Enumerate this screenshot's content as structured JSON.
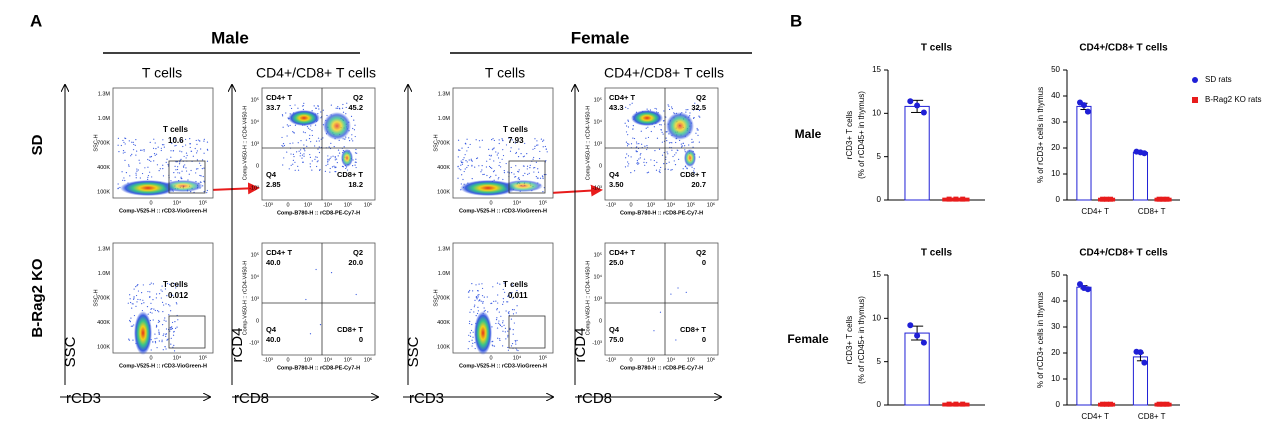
{
  "panel_a": {
    "label": "A",
    "groups": [
      "Male",
      "Female"
    ],
    "columns": [
      "T cells",
      "CD4+/CD8+ T cells",
      "T cells",
      "CD4+/CD8+ T cells"
    ],
    "rows": [
      "SD",
      "B-Rag2 KO"
    ],
    "axis_labels": {
      "ssc": "SSC",
      "cd3": "rCD3",
      "cd4": "rCD4",
      "cd8": "rCD8"
    },
    "axis_titles": {
      "ssc": "SSC-H",
      "cd3": "Comp-V525-H :: rCD3-VioGreen-H",
      "cd4": "Comp-V450-H :: rCD4-V450-H",
      "cd8": "Comp-B780-H :: rCD8-PE-Cy7-H"
    },
    "ssc_ticks": [
      "1.3M",
      "1.0M",
      "700K",
      "400K",
      "100K"
    ],
    "cd3_ticks": [
      "0",
      "10⁴",
      "10⁵"
    ],
    "cd4_ticks": [
      "10⁵",
      "10⁴",
      "10³",
      "0",
      "-10³"
    ],
    "cd8_ticks": [
      "-10³",
      "0",
      "10³",
      "10⁴",
      "10⁵",
      "10⁶"
    ],
    "tcell_plots": [
      {
        "gate": "T cells",
        "value": "10.6"
      },
      {
        "gate": "T cells",
        "value": "0.012"
      },
      {
        "gate": "T cells",
        "value": "7.93"
      },
      {
        "gate": "T cells",
        "value": "0.011"
      }
    ],
    "quadrant_plots": [
      {
        "q1": "CD4+ T",
        "v1": "33.7",
        "q2": "Q2",
        "v2": "45.2",
        "q3": "Q4",
        "v3": "2.85",
        "q4": "CD8+ T",
        "v4": "18.2"
      },
      {
        "q1": "CD4+ T",
        "v1": "40.0",
        "q2": "Q2",
        "v2": "20.0",
        "q3": "Q4",
        "v3": "40.0",
        "q4": "CD8+ T",
        "v4": "0"
      },
      {
        "q1": "CD4+ T",
        "v1": "43.3",
        "q2": "Q2",
        "v2": "32.5",
        "q3": "Q4",
        "v3": "3.50",
        "q4": "CD8+ T",
        "v4": "20.7"
      },
      {
        "q1": "CD4+ T",
        "v1": "25.0",
        "q2": "Q2",
        "v2": "0",
        "q3": "Q4",
        "v3": "75.0",
        "q4": "CD8+ T",
        "v4": "0"
      }
    ]
  },
  "panel_b": {
    "label": "B",
    "rows": [
      "Male",
      "Female"
    ]
  },
  "chart_data": [
    {
      "type": "bar",
      "title": "T cells",
      "ylabel": [
        "rCD3+ T cells",
        "(% of rCD45+ in thymus)"
      ],
      "ylim": [
        0,
        15
      ],
      "yticks": [
        0,
        5,
        10,
        15
      ],
      "series": [
        {
          "color": "#1f1fd6",
          "values": [
            10.8
          ],
          "errors": [
            0.7
          ],
          "points": [
            [
              11.4,
              10.9,
              10.1
            ]
          ]
        },
        {
          "color": "#e81c1c",
          "values": [
            0.1
          ],
          "points": [
            [
              0.1,
              0.1,
              0.1
            ]
          ]
        }
      ]
    },
    {
      "type": "bar",
      "title": "CD4+/CD8+ T cells",
      "ylabel": [
        "% of rCD3+ cells in thymus"
      ],
      "categories": [
        "CD4+ T",
        "CD8+ T"
      ],
      "ylim": [
        0,
        50
      ],
      "yticks": [
        0,
        10,
        20,
        30,
        40,
        50
      ],
      "legend": "upper right",
      "series": [
        {
          "name": "SD rats",
          "color": "#1f1fd6",
          "values": [
            36,
            18.3
          ],
          "errors": [
            1.2,
            0.3
          ],
          "points": [
            [
              37.5,
              36.5,
              34
            ],
            [
              18.6,
              18.3,
              18
            ]
          ]
        },
        {
          "name": "B-Rag2 KO rats",
          "color": "#e81c1c",
          "values": [
            0.3,
            0.3
          ],
          "points": [
            [
              0.3,
              0.3,
              0.3
            ],
            [
              0.3,
              0.3,
              0.3
            ]
          ]
        }
      ]
    },
    {
      "type": "bar",
      "title": "T cells",
      "ylabel": [
        "rCD3+ T cells",
        "(% of rCD45+ in thymus)"
      ],
      "ylim": [
        0,
        15
      ],
      "yticks": [
        0,
        5,
        10,
        15
      ],
      "series": [
        {
          "color": "#1f1fd6",
          "values": [
            8.3
          ],
          "errors": [
            0.8
          ],
          "points": [
            [
              9.2,
              8.0,
              7.2
            ]
          ]
        },
        {
          "color": "#e81c1c",
          "values": [
            0.1
          ],
          "points": [
            [
              0.1,
              0.1,
              0.1
            ]
          ]
        }
      ]
    },
    {
      "type": "bar",
      "title": "CD4+/CD8+ T cells",
      "ylabel": [
        "% of rCD3+ cells in thymus"
      ],
      "categories": [
        "CD4+ T",
        "CD8+ T"
      ],
      "ylim": [
        0,
        50
      ],
      "yticks": [
        0,
        10,
        20,
        30,
        40,
        50
      ],
      "series": [
        {
          "color": "#1f1fd6",
          "values": [
            45.3,
            18.5
          ],
          "errors": [
            0.6,
            1.5
          ],
          "points": [
            [
              46.5,
              45,
              44.5
            ],
            [
              20.5,
              20.3,
              16.3
            ]
          ]
        },
        {
          "color": "#e81c1c",
          "values": [
            0.3,
            0.3
          ],
          "points": [
            [
              0.3,
              0.3,
              0.3
            ],
            [
              0.3,
              0.3,
              0.3
            ]
          ]
        }
      ]
    }
  ]
}
